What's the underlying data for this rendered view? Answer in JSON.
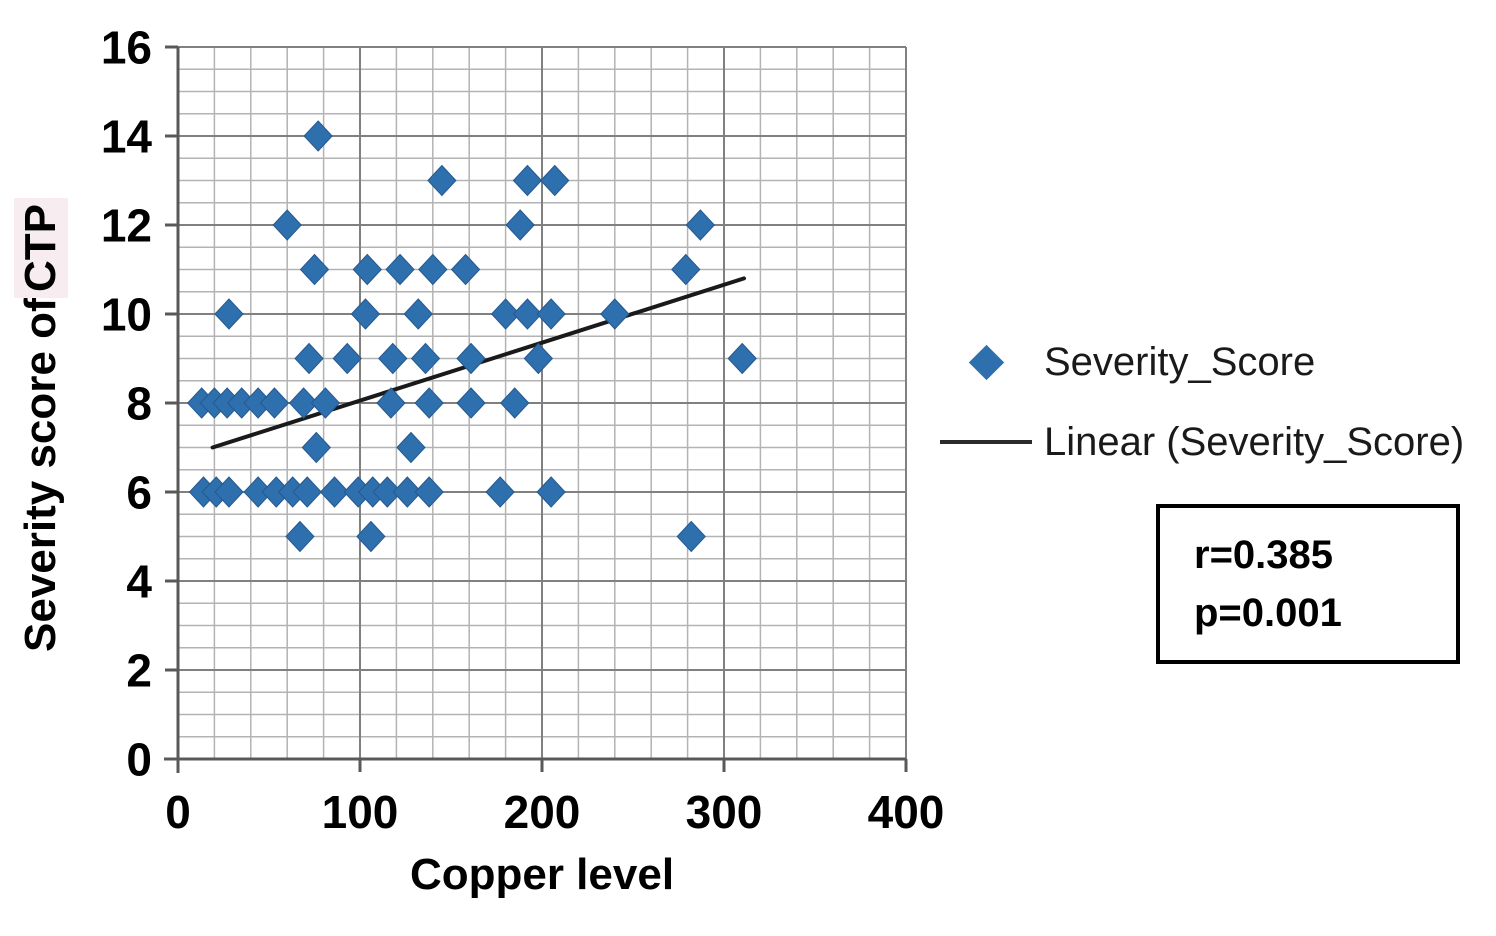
{
  "chart_data": {
    "type": "scatter",
    "title": "",
    "xlabel": "Copper level",
    "ylabel": "Severity score of CTP",
    "xlim": [
      0,
      400
    ],
    "ylim": [
      0,
      16
    ],
    "x_major_ticks": [
      0,
      100,
      200,
      300,
      400
    ],
    "y_major_ticks": [
      0,
      2,
      4,
      6,
      8,
      10,
      12,
      14,
      16
    ],
    "x_minor_step": 20,
    "y_minor_step": 0.5,
    "grid": "major+minor",
    "legend_position": "right",
    "series": [
      {
        "name": "Severity_Score",
        "marker": "diamond",
        "color": "#2e6fae",
        "points": [
          [
            77,
            14
          ],
          [
            145,
            13
          ],
          [
            192,
            13
          ],
          [
            207,
            13
          ],
          [
            60,
            12
          ],
          [
            188,
            12
          ],
          [
            287,
            12
          ],
          [
            75,
            11
          ],
          [
            104,
            11
          ],
          [
            122,
            11
          ],
          [
            140,
            11
          ],
          [
            158,
            11
          ],
          [
            279,
            11
          ],
          [
            28,
            10
          ],
          [
            103,
            10
          ],
          [
            132,
            10
          ],
          [
            180,
            10
          ],
          [
            192,
            10
          ],
          [
            205,
            10
          ],
          [
            240,
            10
          ],
          [
            72,
            9
          ],
          [
            93,
            9
          ],
          [
            118,
            9
          ],
          [
            136,
            9
          ],
          [
            161,
            9
          ],
          [
            198,
            9
          ],
          [
            310,
            9
          ],
          [
            13,
            8
          ],
          [
            20,
            8
          ],
          [
            27,
            8
          ],
          [
            35,
            8
          ],
          [
            44,
            8
          ],
          [
            53,
            8
          ],
          [
            69,
            8
          ],
          [
            81,
            8
          ],
          [
            117,
            8
          ],
          [
            138,
            8
          ],
          [
            161,
            8
          ],
          [
            185,
            8
          ],
          [
            76,
            7
          ],
          [
            128,
            7
          ],
          [
            14,
            6
          ],
          [
            21,
            6
          ],
          [
            28,
            6
          ],
          [
            44,
            6
          ],
          [
            54,
            6
          ],
          [
            63,
            6
          ],
          [
            71,
            6
          ],
          [
            86,
            6
          ],
          [
            99,
            6
          ],
          [
            107,
            6
          ],
          [
            115,
            6
          ],
          [
            126,
            6
          ],
          [
            138,
            6
          ],
          [
            177,
            6
          ],
          [
            205,
            6
          ],
          [
            67,
            5
          ],
          [
            106,
            5
          ],
          [
            282,
            5
          ]
        ]
      }
    ],
    "trendline": {
      "name": "Linear (Severity_Score)",
      "start": {
        "x": 19,
        "y": 7.0
      },
      "end": {
        "x": 311,
        "y": 10.8
      },
      "color": "#1a1a1a"
    }
  },
  "axis_titles": {
    "x": "Copper level",
    "y_main": "Severity score of ",
    "y_highlight": "CTP"
  },
  "legend": {
    "series_label": "Severity_Score",
    "trend_label": "Linear (Severity_Score)"
  },
  "stats_box": {
    "r_value": "r=0.385",
    "p_value": "p=0.001"
  },
  "colors": {
    "marker": "#2e6fae",
    "marker_edge": "#27598f",
    "major_grid": "#808080",
    "minor_grid": "#b3b3b3",
    "axis_line": "#595959",
    "trend_line": "#1a1a1a",
    "highlight_bg": "#f7edf0"
  }
}
